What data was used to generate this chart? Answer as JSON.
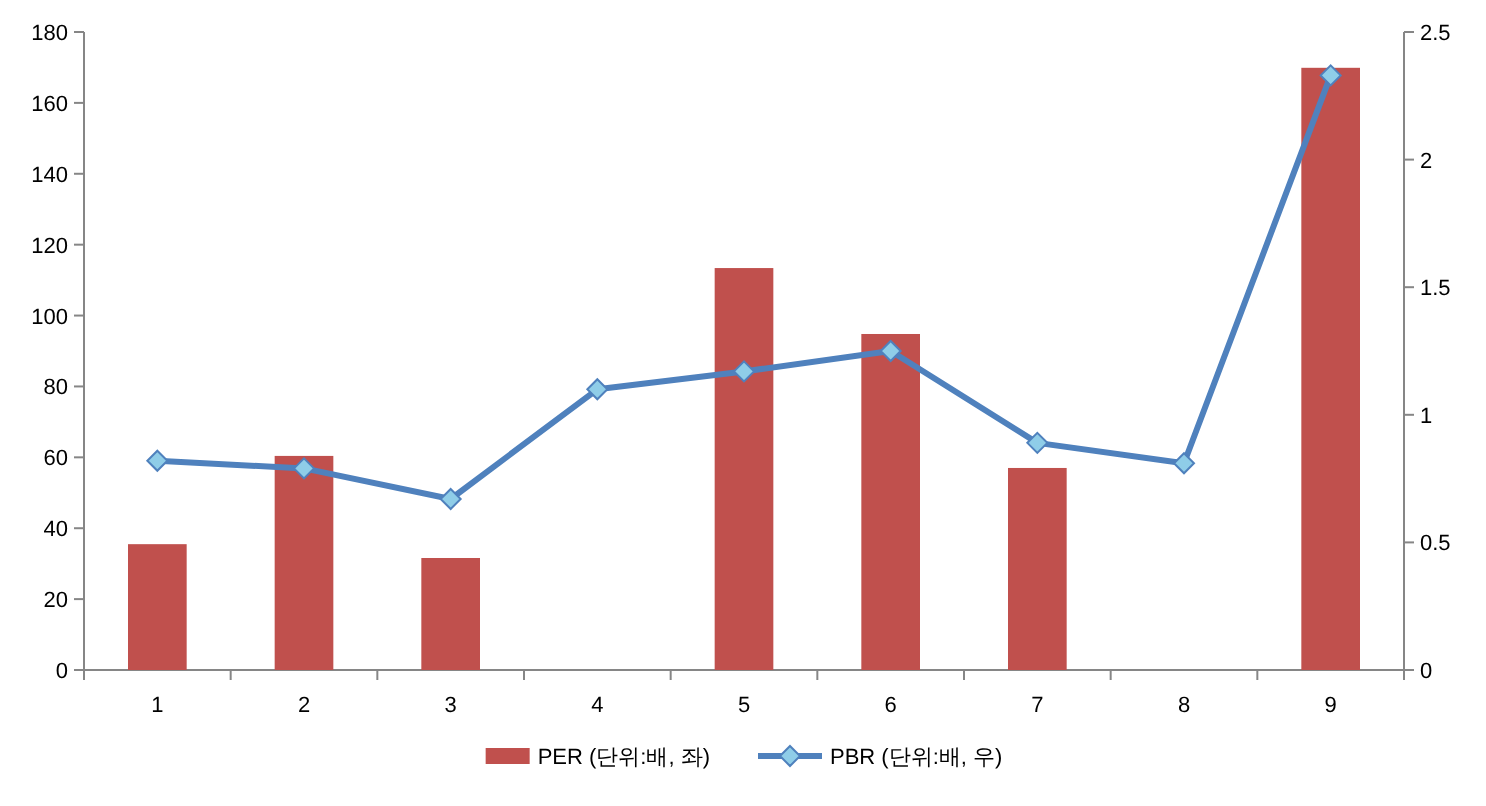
{
  "chart_data": {
    "type": "bar",
    "categories": [
      "1",
      "2",
      "3",
      "4",
      "5",
      "6",
      "7",
      "8",
      "9"
    ],
    "series": [
      {
        "name": "PER (단위:배, 좌)",
        "color": "#c0504d",
        "values": [
          35.5,
          60.4,
          31.6,
          null,
          113.4,
          94.8,
          57,
          null,
          169.9
        ]
      },
      {
        "name": "PBR (단위:배, 우)",
        "color": "#4f81bd",
        "type": "line",
        "axis": "y2",
        "values": [
          0.82,
          0.79,
          0.67,
          1.1,
          1.17,
          1.25,
          0.89,
          0.81,
          2.33
        ]
      }
    ],
    "marker": "diamond",
    "legend": "bottom",
    "ylim": [
      0,
      180
    ],
    "yticks": [
      0,
      20,
      40,
      60,
      80,
      100,
      120,
      140,
      160,
      180
    ],
    "y2lim": [
      0,
      2.5
    ],
    "y2ticks": [
      0,
      0.5,
      1,
      1.5,
      2,
      2.5
    ]
  }
}
